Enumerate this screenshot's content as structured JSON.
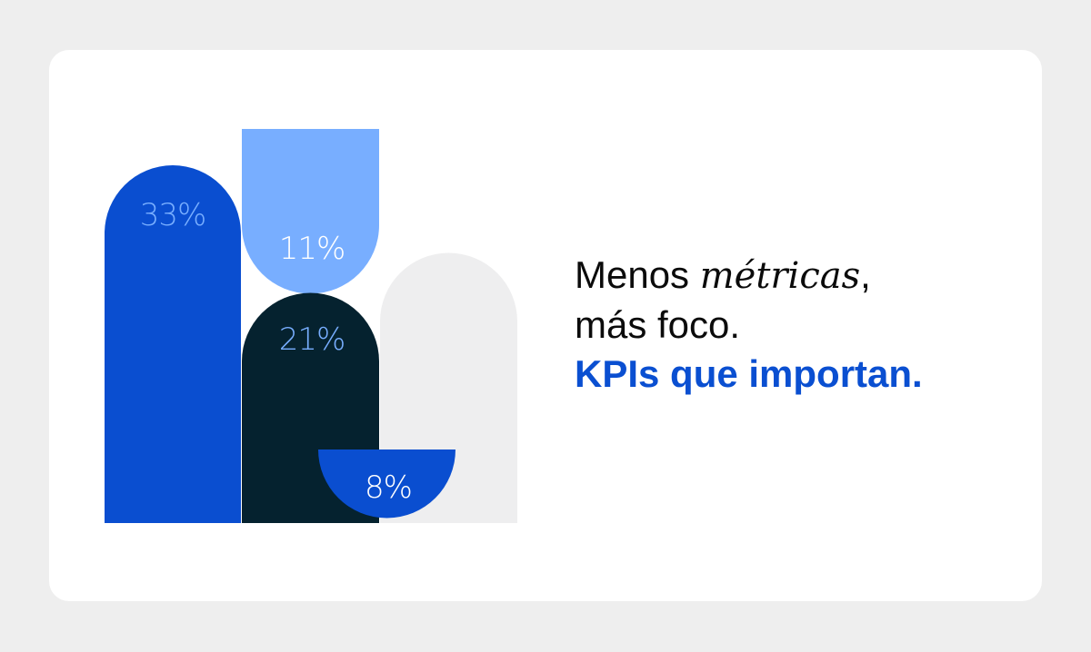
{
  "colors": {
    "background": "#eeeeee",
    "card": "#ffffff",
    "blue": "#0a4ed0",
    "light_blue": "#78aeff",
    "navy": "#05222f",
    "light_gray": "#eeeeef",
    "accent_text": "#0a4fd1"
  },
  "stats": [
    {
      "label": "33%",
      "color": "#0a4ed0",
      "text_color": "#78aeff"
    },
    {
      "label": "11%",
      "color": "#78aeff",
      "text_color": "#ffffff"
    },
    {
      "label": "21%",
      "color": "#05222f",
      "text_color": "#78aeff"
    },
    {
      "label": "8%",
      "color": "#0a4ed0",
      "text_color": "#ffffff"
    }
  ],
  "headline": {
    "line1_start": "Menos ",
    "line1_italic": "métricas",
    "line1_end": ",",
    "line2": "más foco.",
    "line3": "KPIs que importan."
  }
}
